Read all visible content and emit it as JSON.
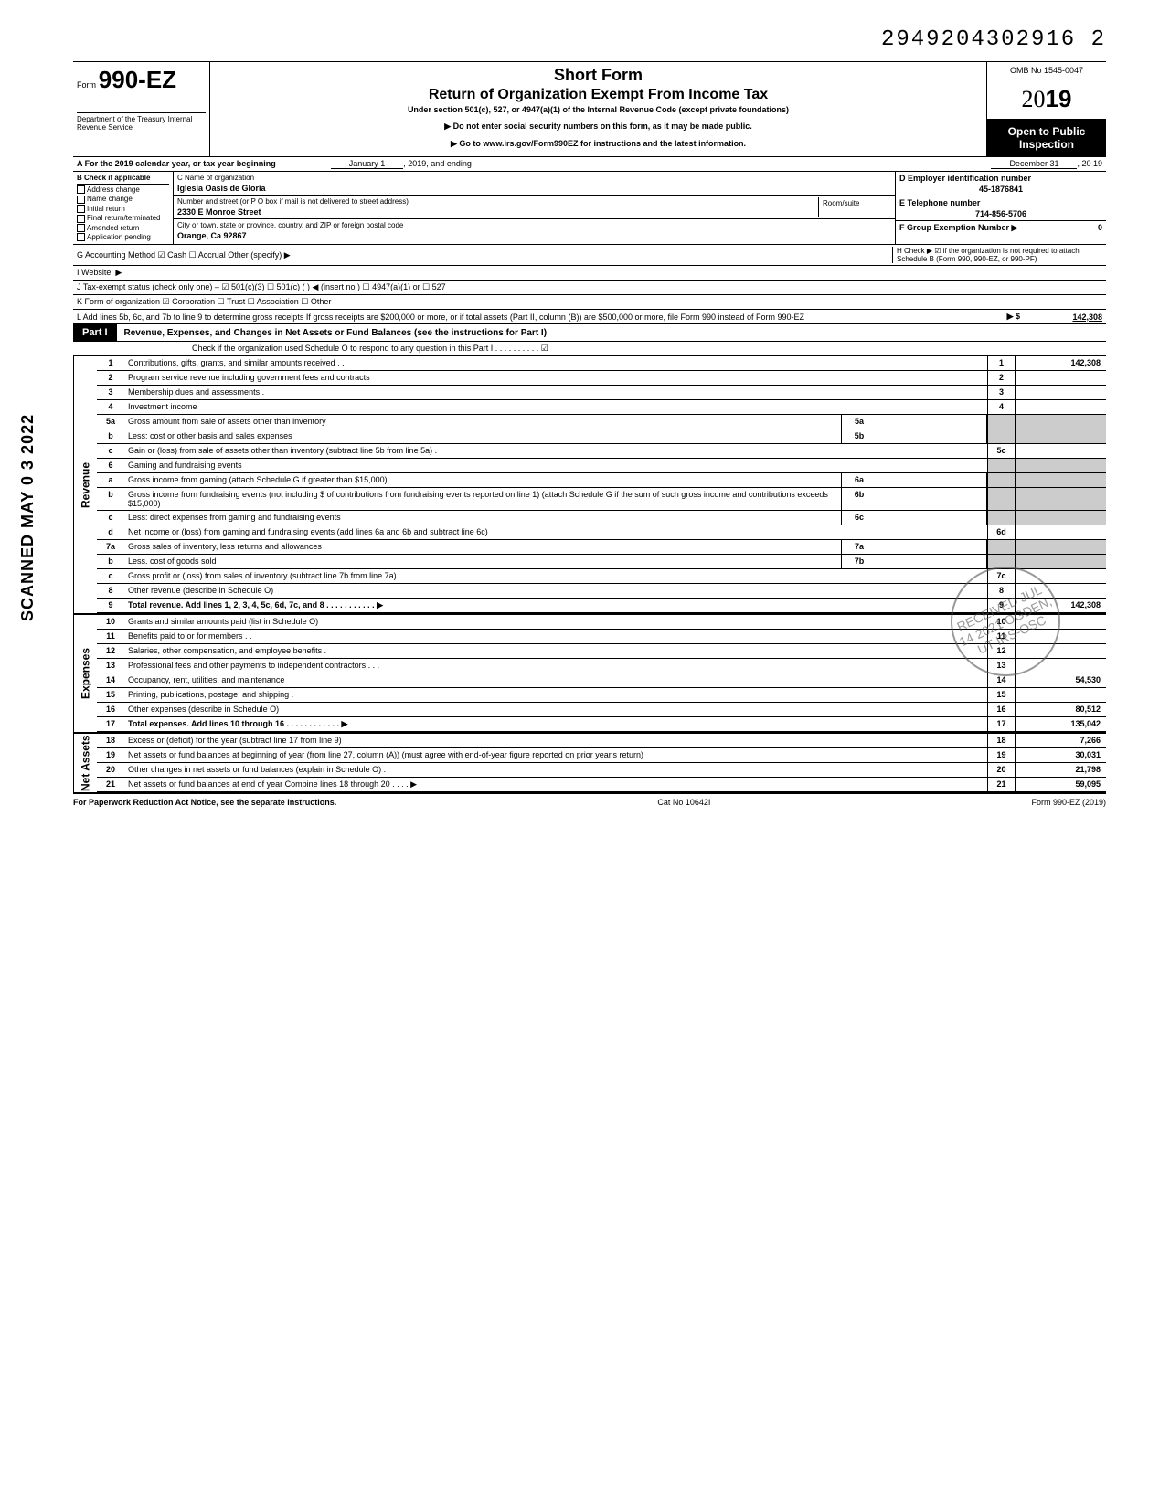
{
  "doc_number": "2949204302916 2",
  "vertical_stamp": "SCANNED MAY 0 3 2022",
  "header": {
    "form_prefix": "Form",
    "form_num": "990-EZ",
    "dept": "Department of the Treasury\nInternal Revenue Service",
    "short_form": "Short Form",
    "return_title": "Return of Organization Exempt From Income Tax",
    "under_section": "Under section 501(c), 527, or 4947(a)(1) of the Internal Revenue Code (except private foundations)",
    "note1": "▶ Do not enter social security numbers on this form, as it may be made public.",
    "note2": "▶ Go to www.irs.gov/Form990EZ for instructions and the latest information.",
    "omb": "OMB No 1545-0047",
    "year_outline": "20",
    "year_bold": "19",
    "open_public": "Open to Public Inspection"
  },
  "row_a": {
    "label": "A  For the 2019 calendar year, or tax year beginning",
    "mid1": "January 1",
    "mid2": ", 2019, and ending",
    "end1": "December 31",
    "end2": ", 20  19"
  },
  "col_b": {
    "header": "B  Check if applicable",
    "items": [
      "Address change",
      "Name change",
      "Initial return",
      "Final return/terminated",
      "Amended return",
      "Application pending"
    ]
  },
  "org": {
    "c_label": "C  Name of organization",
    "name": "Iglesia Oasis de Gloria",
    "addr_label": "Number and street (or P O  box if mail is not delivered to street address)",
    "addr": "2330 E Monroe Street",
    "city_label": "City or town, state or province, country, and ZIP or foreign postal code",
    "city": "Orange, Ca 92867",
    "room_label": "Room/suite"
  },
  "right_col": {
    "d_label": "D Employer identification number",
    "ein": "45-1876841",
    "e_label": "E Telephone number",
    "phone": "714-856-5706",
    "f_label": "F Group Exemption Number ▶",
    "f_val": "0",
    "h_label": "H  Check ▶ ☑ if the organization is not required to attach Schedule B (Form 990, 990-EZ, or 990-PF)"
  },
  "lines": {
    "g": "G  Accounting Method    ☑ Cash    ☐ Accrual    Other (specify) ▶",
    "i": "I  Website: ▶",
    "j": "J  Tax-exempt status (check only one) –  ☑ 501(c)(3)   ☐ 501(c) (        ) ◀ (insert no )  ☐ 4947(a)(1) or   ☐ 527",
    "k": "K  Form of organization    ☑ Corporation    ☐ Trust    ☐ Association    ☐ Other",
    "l": "L  Add lines 5b, 6c, and 7b to line 9 to determine gross receipts  If gross receipts are $200,000 or more, or if total assets (Part II, column (B)) are $500,000 or more, file Form 990 instead of Form 990-EZ",
    "l_val": "142,308"
  },
  "part1": {
    "badge": "Part I",
    "title": "Revenue, Expenses, and Changes in Net Assets or Fund Balances (see the instructions for Part I)",
    "check_o": "Check if the organization used Schedule O to respond to any question in this Part I  .  .  .  .  .  .  .  .  .  .  ☑"
  },
  "sections": {
    "revenue": "Revenue",
    "expenses": "Expenses",
    "netassets": "Net Assets"
  },
  "rows": [
    {
      "n": "1",
      "desc": "Contributions, gifts, grants, and similar amounts received .  .",
      "rn": "1",
      "val": "142,308"
    },
    {
      "n": "2",
      "desc": "Program service revenue including government fees and contracts",
      "rn": "2",
      "val": ""
    },
    {
      "n": "3",
      "desc": "Membership dues and assessments .",
      "rn": "3",
      "val": ""
    },
    {
      "n": "4",
      "desc": "Investment income",
      "rn": "4",
      "val": ""
    },
    {
      "n": "5a",
      "desc": "Gross amount from sale of assets other than inventory",
      "mid": "5a",
      "midval": ""
    },
    {
      "n": "b",
      "desc": "Less: cost or other basis and sales expenses",
      "mid": "5b",
      "midval": ""
    },
    {
      "n": "c",
      "desc": "Gain or (loss) from sale of assets other than inventory (subtract line 5b from line 5a)  .",
      "rn": "5c",
      "val": ""
    },
    {
      "n": "6",
      "desc": "Gaming and fundraising events"
    },
    {
      "n": "a",
      "desc": "Gross income from gaming (attach Schedule G if greater than $15,000)",
      "mid": "6a",
      "midval": ""
    },
    {
      "n": "b",
      "desc": "Gross income from fundraising events (not including  $               of contributions from fundraising events reported on line 1) (attach Schedule G if the sum of such gross income and contributions exceeds $15,000)",
      "mid": "6b",
      "midval": ""
    },
    {
      "n": "c",
      "desc": "Less: direct expenses from gaming and fundraising events",
      "mid": "6c",
      "midval": ""
    },
    {
      "n": "d",
      "desc": "Net income or (loss) from gaming and fundraising events (add lines 6a and 6b and subtract line 6c)",
      "rn": "6d",
      "val": ""
    },
    {
      "n": "7a",
      "desc": "Gross sales of inventory, less returns and allowances",
      "mid": "7a",
      "midval": ""
    },
    {
      "n": "b",
      "desc": "Less. cost of goods sold",
      "mid": "7b",
      "midval": ""
    },
    {
      "n": "c",
      "desc": "Gross profit or (loss) from sales of inventory (subtract line 7b from line 7a)  .  .",
      "rn": "7c",
      "val": ""
    },
    {
      "n": "8",
      "desc": "Other revenue (describe in Schedule O)",
      "rn": "8",
      "val": ""
    },
    {
      "n": "9",
      "desc": "Total revenue. Add lines 1, 2, 3, 4, 5c, 6d, 7c, and 8    .  .  .  .  .  .  .  .  .  .  .  ▶",
      "rn": "9",
      "val": "142,308",
      "bold": true
    }
  ],
  "exp_rows": [
    {
      "n": "10",
      "desc": "Grants and similar amounts paid (list in Schedule O)",
      "rn": "10",
      "val": ""
    },
    {
      "n": "11",
      "desc": "Benefits paid to or for members  .  .",
      "rn": "11",
      "val": ""
    },
    {
      "n": "12",
      "desc": "Salaries, other compensation, and employee benefits  .",
      "rn": "12",
      "val": ""
    },
    {
      "n": "13",
      "desc": "Professional fees and other payments to independent contractors .  .  .",
      "rn": "13",
      "val": ""
    },
    {
      "n": "14",
      "desc": "Occupancy, rent, utilities, and maintenance",
      "rn": "14",
      "val": "54,530"
    },
    {
      "n": "15",
      "desc": "Printing, publications, postage, and shipping .",
      "rn": "15",
      "val": ""
    },
    {
      "n": "16",
      "desc": "Other expenses (describe in Schedule O)",
      "rn": "16",
      "val": "80,512"
    },
    {
      "n": "17",
      "desc": "Total expenses. Add lines 10 through 16    .  .  .  .  .  .  .  .  .  .  .  .  ▶",
      "rn": "17",
      "val": "135,042",
      "bold": true
    }
  ],
  "na_rows": [
    {
      "n": "18",
      "desc": "Excess or (deficit) for the year (subtract line 17 from line 9)",
      "rn": "18",
      "val": "7,266"
    },
    {
      "n": "19",
      "desc": "Net assets or fund balances at beginning of year (from line 27, column (A)) (must agree with end-of-year figure reported on prior year's return)",
      "rn": "19",
      "val": "30,031"
    },
    {
      "n": "20",
      "desc": "Other changes in net assets or fund balances (explain in Schedule O) .",
      "rn": "20",
      "val": "21,798"
    },
    {
      "n": "21",
      "desc": "Net assets or fund balances at end of year  Combine lines 18 through 20   .  .  .  . ▶",
      "rn": "21",
      "val": "59,095"
    }
  ],
  "footer": {
    "left": "For Paperwork Reduction Act Notice, see the separate instructions.",
    "mid": "Cat  No  10642I",
    "right": "Form 990-EZ (2019)"
  },
  "stamp_text": "RECEIVED JUL 14 2021 OGDEN, UT IRS-OSC"
}
